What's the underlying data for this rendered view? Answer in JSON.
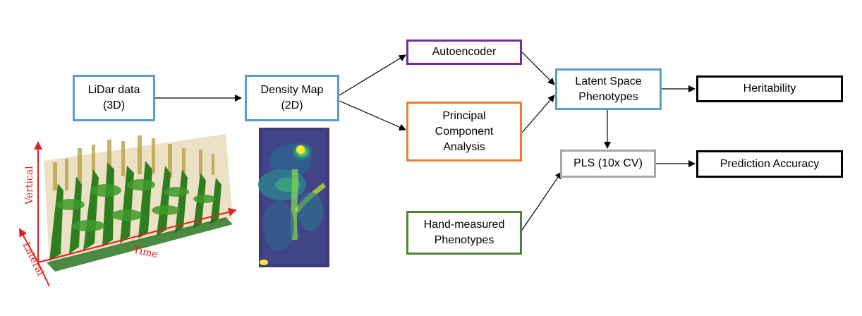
{
  "boxes": {
    "lidar": "LiDar data\n(3D)",
    "density": "Density Map\n(2D)",
    "autoencoder": "Autoencoder",
    "pca": "Principal\nComponent\nAnalysis",
    "latent": "Latent Space\nPhenotypes",
    "heritability": "Heritability",
    "pls": "PLS (10x CV)",
    "prediction": "Prediction Accuracy",
    "hand": "Hand-measured\nPhenotypes"
  },
  "pointcloud_axes": {
    "vertical": "Vertical",
    "lateral": "Lateral",
    "time": "Time"
  },
  "colors": {
    "blue": "#5b9bd5",
    "purple": "#7030a0",
    "orange": "#ed7d31",
    "green": "#548235",
    "gray": "#a6a6a6",
    "axis_red": "#e02020"
  }
}
